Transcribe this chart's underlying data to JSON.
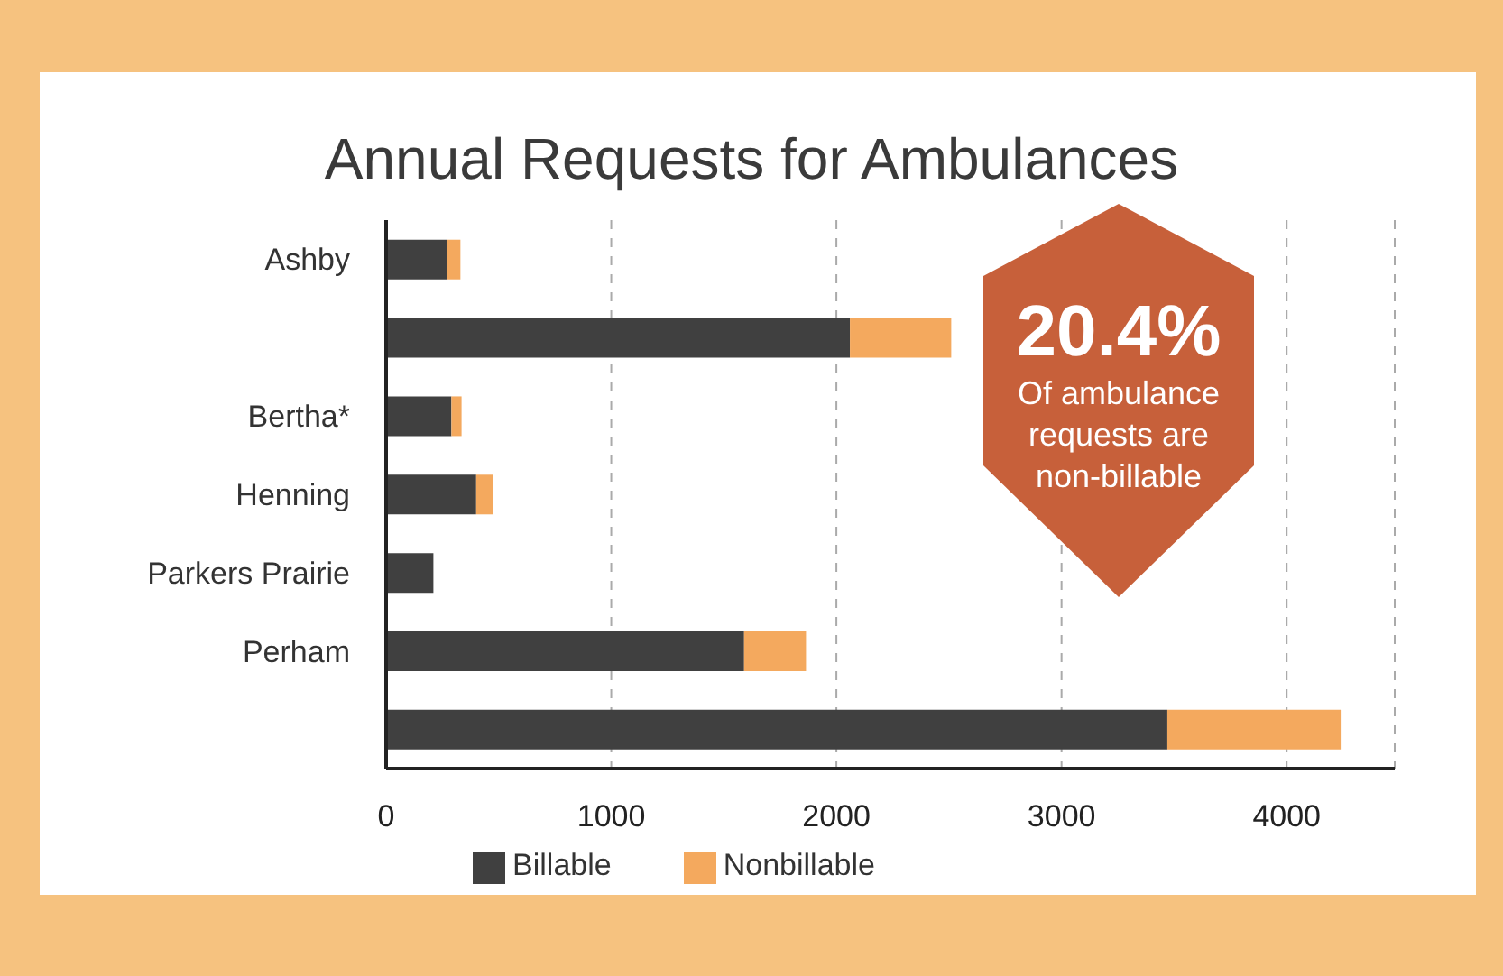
{
  "chart_data": {
    "type": "bar",
    "orientation": "horizontal",
    "stacked": true,
    "title": "Annual Requests for Ambulances",
    "categories": [
      "Ashby",
      null,
      "Bertha*",
      "Henning",
      "Parkers Prairie",
      "Perham",
      null
    ],
    "series": [
      {
        "name": "Billable",
        "color": "#404040",
        "values": [
          270,
          2060,
          290,
          400,
          210,
          1590,
          3470
        ]
      },
      {
        "name": "Nonbillable",
        "color": "#f4a95e",
        "values": [
          60,
          450,
          45,
          75,
          0,
          275,
          770
        ]
      }
    ],
    "xlim": [
      0,
      4480
    ],
    "xticks": [
      0,
      1000,
      2000,
      3000,
      4000
    ],
    "grid": "x",
    "legend": "bottom",
    "annotations": [
      "20.4%",
      "Of ambulance requests are non-billable"
    ]
  }
}
